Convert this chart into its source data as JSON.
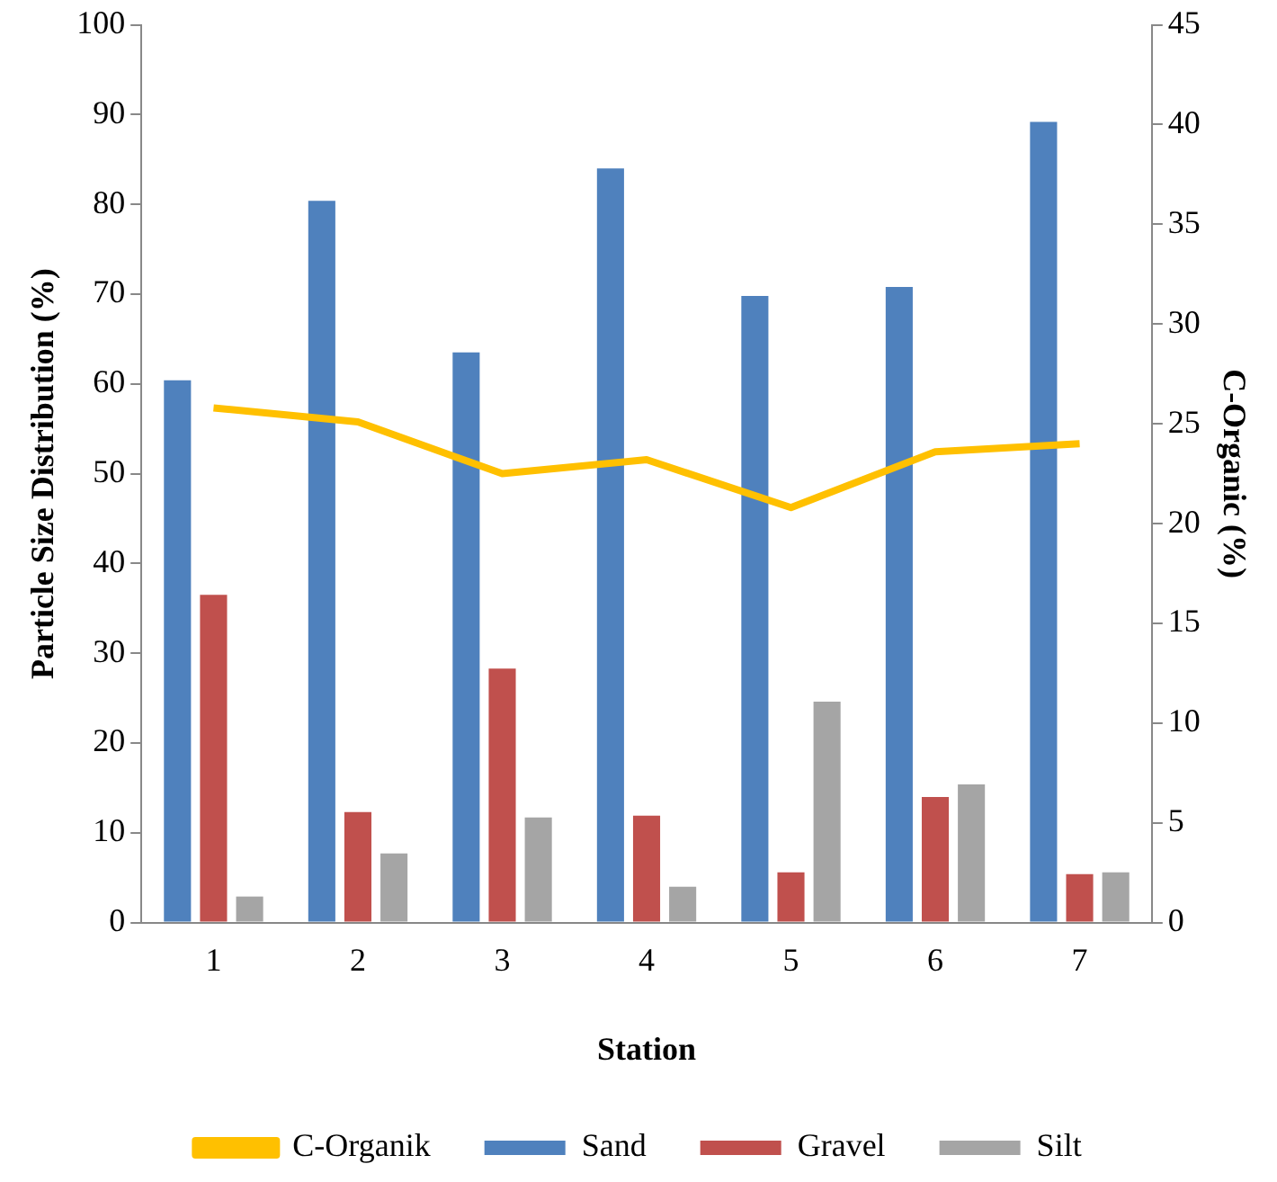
{
  "chart_data": {
    "type": "bar",
    "xlabel": "Station",
    "ylabel": "Particle Size Distribution (%)",
    "y2label": "C-Organic (%)",
    "categories": [
      "1",
      "2",
      "3",
      "4",
      "5",
      "6",
      "7"
    ],
    "series": [
      {
        "name": "Sand",
        "color": "#4f81bd",
        "values": [
          60.4,
          80.4,
          63.5,
          84.0,
          69.8,
          70.8,
          89.2
        ]
      },
      {
        "name": "Gravel",
        "color": "#c0504d",
        "values": [
          36.5,
          12.3,
          28.3,
          11.9,
          5.6,
          14.0,
          5.4
        ]
      },
      {
        "name": "Silt",
        "color": "#a5a5a5",
        "values": [
          2.9,
          7.7,
          11.7,
          4.0,
          24.6,
          15.4,
          5.6
        ]
      },
      {
        "name": "C-Organik",
        "type": "line",
        "axis": "y2",
        "color": "#ffc000",
        "values": [
          25.8,
          25.1,
          22.5,
          23.2,
          20.8,
          23.6,
          24.0
        ]
      }
    ],
    "ylim": [
      0,
      100
    ],
    "yticks": [
      0,
      10,
      20,
      30,
      40,
      50,
      60,
      70,
      80,
      90,
      100
    ],
    "y2lim": [
      0,
      45
    ],
    "y2ticks": [
      0,
      5,
      10,
      15,
      20,
      25,
      30,
      35,
      40,
      45
    ],
    "grid": false,
    "legend": "bottom",
    "marker": "none"
  }
}
